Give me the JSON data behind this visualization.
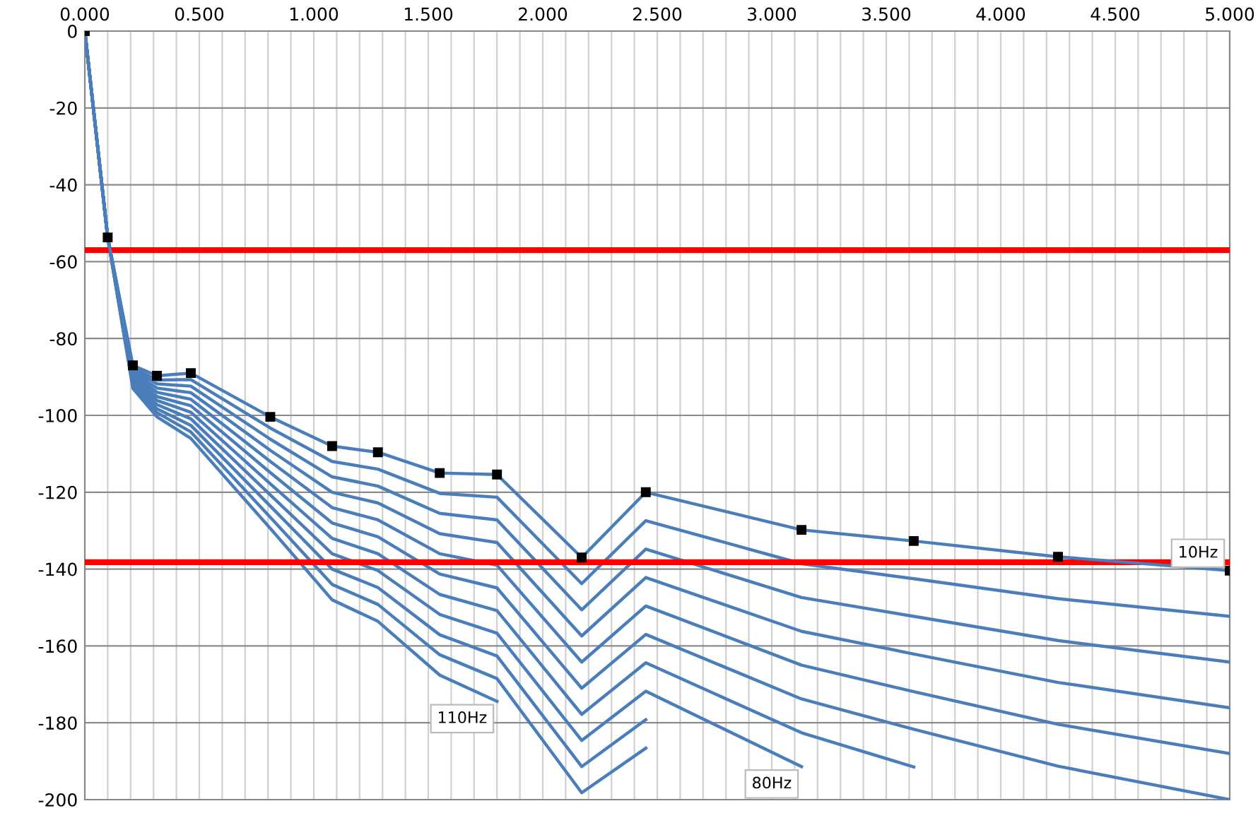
{
  "chart_data": {
    "type": "line",
    "x": [
      0,
      0.1,
      0.21,
      0.315,
      0.463,
      0.81,
      1.08,
      1.28,
      1.55,
      1.8,
      2.17,
      2.45,
      3.13,
      3.62,
      4.25,
      5.0
    ],
    "series": [
      {
        "name": "10Hz",
        "color": "#4a7ebb",
        "marker": "square",
        "values": [
          0,
          -53.7,
          -87,
          -89.7,
          -89,
          -100.4,
          -108,
          -109.6,
          -115,
          -115.4,
          -137,
          -120,
          -129.8,
          -132.7,
          -136.8,
          -140.4
        ]
      },
      {
        "color": "#4a7ebb",
        "values": [
          0,
          -53.7,
          -87.6,
          -90.8,
          -90.7,
          -103.3,
          -112,
          -114,
          -120.3,
          -121.3,
          -143.8,
          -127.4,
          -138.6,
          -142.5,
          -147.7,
          -152.3
        ]
      },
      {
        "color": "#4a7ebb",
        "values": [
          0,
          -53.7,
          -88.2,
          -91.8,
          -92.4,
          -106.2,
          -116,
          -118.4,
          -125.5,
          -127.2,
          -150.6,
          -134.8,
          -147.4,
          -152.3,
          -158.6,
          -164.2
        ]
      },
      {
        "color": "#4a7ebb",
        "values": [
          0,
          -53.7,
          -88.8,
          -92.9,
          -94.1,
          -109.1,
          -120,
          -122.8,
          -130.8,
          -133.1,
          -157.4,
          -142.2,
          -156.2,
          -162.1,
          -169.5,
          -176.1
        ]
      },
      {
        "color": "#4a7ebb",
        "values": [
          0,
          -53.7,
          -89.4,
          -94,
          -95.8,
          -112,
          -124,
          -127.2,
          -136,
          -139,
          -164.2,
          -149.6,
          -165,
          -171.9,
          -180.4,
          -188
        ]
      },
      {
        "color": "#4a7ebb",
        "values": [
          0,
          -53.7,
          -90,
          -95.1,
          -97.5,
          -114.9,
          -128,
          -131.6,
          -141.3,
          -144.9,
          -171,
          -157,
          -173.8,
          -181.7,
          -191.3,
          -200
        ]
      },
      {
        "color": "#4a7ebb",
        "values": [
          0,
          -53.7,
          -90.6,
          -96.1,
          -99.2,
          -117.8,
          -132,
          -136,
          -146.6,
          -150.8,
          -177.8,
          -164.4,
          -182.6,
          -191.5,
          null,
          null
        ]
      },
      {
        "name": "80Hz",
        "color": "#4a7ebb",
        "values": [
          0,
          -53.7,
          -91.2,
          -97.2,
          -100.9,
          -120.7,
          -136,
          -140.4,
          -151.8,
          -156.7,
          -184.6,
          -171.8,
          -191.4,
          null,
          null,
          null
        ]
      },
      {
        "color": "#4a7ebb",
        "values": [
          0,
          -53.7,
          -91.8,
          -98.3,
          -102.6,
          -123.6,
          -140,
          -144.8,
          -157.1,
          -162.6,
          -191.4,
          -179.2,
          null,
          null,
          null,
          null
        ]
      },
      {
        "color": "#4a7ebb",
        "values": [
          0,
          -53.7,
          -92.4,
          -99.3,
          -104.3,
          -126.5,
          -144,
          -149.2,
          -162.3,
          -168.5,
          -198.2,
          -186.6,
          null,
          null,
          null,
          null
        ]
      },
      {
        "name": "110Hz",
        "color": "#4a7ebb",
        "values": [
          0,
          -53.7,
          -93,
          -100.4,
          -106,
          -129.4,
          -148,
          -153.6,
          -167.6,
          -174.4,
          null,
          null,
          null,
          null,
          null,
          null
        ]
      }
    ],
    "xlim": [
      0,
      5
    ],
    "ylim": [
      -200,
      0
    ],
    "xticks": [
      {
        "value": 0,
        "label": "0.000"
      },
      {
        "value": 0.1,
        "label": null
      },
      {
        "value": 0.2,
        "label": null
      },
      {
        "value": 0.3,
        "label": null
      },
      {
        "value": 0.4,
        "label": null
      },
      {
        "value": 0.5,
        "label": "0.500"
      },
      {
        "value": 0.6,
        "label": null
      },
      {
        "value": 0.7,
        "label": null
      },
      {
        "value": 0.8,
        "label": null
      },
      {
        "value": 0.9,
        "label": null
      },
      {
        "value": 1.0,
        "label": "1.000"
      },
      {
        "value": 1.1,
        "label": null
      },
      {
        "value": 1.2,
        "label": null
      },
      {
        "value": 1.3,
        "label": null
      },
      {
        "value": 1.4,
        "label": null
      },
      {
        "value": 1.5,
        "label": "1.500"
      },
      {
        "value": 1.6,
        "label": null
      },
      {
        "value": 1.7,
        "label": null
      },
      {
        "value": 1.8,
        "label": null
      },
      {
        "value": 1.9,
        "label": null
      },
      {
        "value": 2.0,
        "label": "2.000"
      },
      {
        "value": 2.1,
        "label": null
      },
      {
        "value": 2.2,
        "label": null
      },
      {
        "value": 2.3,
        "label": null
      },
      {
        "value": 2.4,
        "label": null
      },
      {
        "value": 2.5,
        "label": "2.500"
      },
      {
        "value": 2.6,
        "label": null
      },
      {
        "value": 2.7,
        "label": null
      },
      {
        "value": 2.8,
        "label": null
      },
      {
        "value": 2.9,
        "label": null
      },
      {
        "value": 3.0,
        "label": "3.000"
      },
      {
        "value": 3.1,
        "label": null
      },
      {
        "value": 3.2,
        "label": null
      },
      {
        "value": 3.3,
        "label": null
      },
      {
        "value": 3.4,
        "label": null
      },
      {
        "value": 3.5,
        "label": "3.500"
      },
      {
        "value": 3.6,
        "label": null
      },
      {
        "value": 3.7,
        "label": null
      },
      {
        "value": 3.8,
        "label": null
      },
      {
        "value": 3.9,
        "label": null
      },
      {
        "value": 4.0,
        "label": "4.000"
      },
      {
        "value": 4.1,
        "label": null
      },
      {
        "value": 4.2,
        "label": null
      },
      {
        "value": 4.3,
        "label": null
      },
      {
        "value": 4.4,
        "label": null
      },
      {
        "value": 4.5,
        "label": "4.500"
      },
      {
        "value": 4.6,
        "label": null
      },
      {
        "value": 4.7,
        "label": null
      },
      {
        "value": 4.8,
        "label": null
      },
      {
        "value": 4.9,
        "label": null
      },
      {
        "value": 5.0,
        "label": "5.000"
      }
    ],
    "yticks": [
      0,
      -20,
      -40,
      -60,
      -80,
      -100,
      -120,
      -140,
      -160,
      -180,
      -200
    ],
    "grid": true,
    "ref_lines": [
      {
        "axis": "y",
        "value": -57,
        "color": "#ff0000"
      },
      {
        "axis": "y",
        "value": -138.2,
        "color": "#ff0000"
      }
    ]
  }
}
